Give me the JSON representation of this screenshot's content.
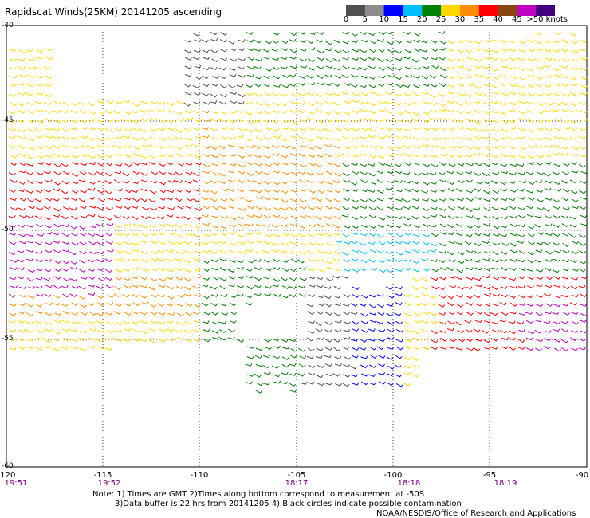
{
  "title": "Rapidscat Winds(25KM) 20141205 ascending",
  "colorbar": {
    "labels": [
      "0",
      "5",
      "10",
      "15",
      "20",
      "25",
      "30",
      "35",
      "40",
      "45",
      ">50 knots"
    ],
    "colors": [
      "#505050",
      "#8c8c8c",
      "#0000ff",
      "#00bfff",
      "#008000",
      "#ffd700",
      "#ff8c00",
      "#ff0000",
      "#8b4513",
      "#c000c0",
      "#400080"
    ]
  },
  "axes": {
    "lon_labels": [
      "-120",
      "-115",
      "-110",
      "-105",
      "-100",
      "-95",
      "-90"
    ],
    "lat_labels": [
      "-40",
      "-45",
      "-50",
      "-55",
      "-60"
    ],
    "time_labels": [
      "19:51",
      "19:52",
      "18:17",
      "18:18",
      "18:19"
    ]
  },
  "notes": {
    "line1": "Note: 1) Times are GMT 2)Times along bottom correspond to measurement at -50S",
    "line2": "3)Data buffer is 22 hrs from 20141205 4) Black circles indicate possible contamination",
    "credit": "NOAA/NESDIS/Office of Research and Applications"
  },
  "map_data": {
    "lon_range": [
      -120,
      -90
    ],
    "lat_range": [
      -60,
      -40
    ],
    "wind_speed_units": "knots",
    "grid": true
  }
}
